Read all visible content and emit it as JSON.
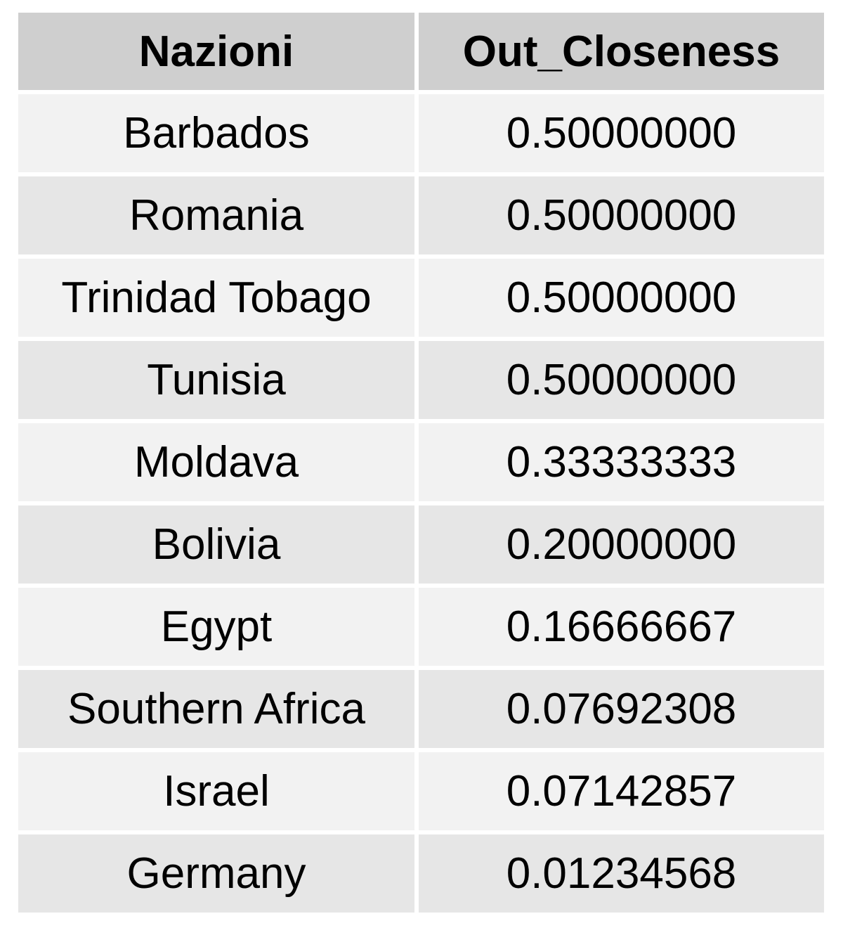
{
  "chart_data": {
    "type": "table",
    "columns": [
      "Nazioni",
      "Out_Closeness"
    ],
    "rows": [
      [
        "Barbados",
        "0.50000000"
      ],
      [
        "Romania",
        "0.50000000"
      ],
      [
        "Trinidad Tobago",
        "0.50000000"
      ],
      [
        "Tunisia",
        "0.50000000"
      ],
      [
        "Moldava",
        "0.33333333"
      ],
      [
        "Bolivia",
        "0.20000000"
      ],
      [
        "Egypt",
        "0.16666667"
      ],
      [
        "Southern Africa",
        "0.07692308"
      ],
      [
        "Israel",
        "0.07142857"
      ],
      [
        "Germany",
        "0.01234568"
      ]
    ]
  },
  "colors": {
    "header_bg": "#cfcfcf",
    "row_odd_bg": "#f2f2f2",
    "row_even_bg": "#e6e6e6",
    "border": "#ffffff",
    "text": "#000000"
  }
}
